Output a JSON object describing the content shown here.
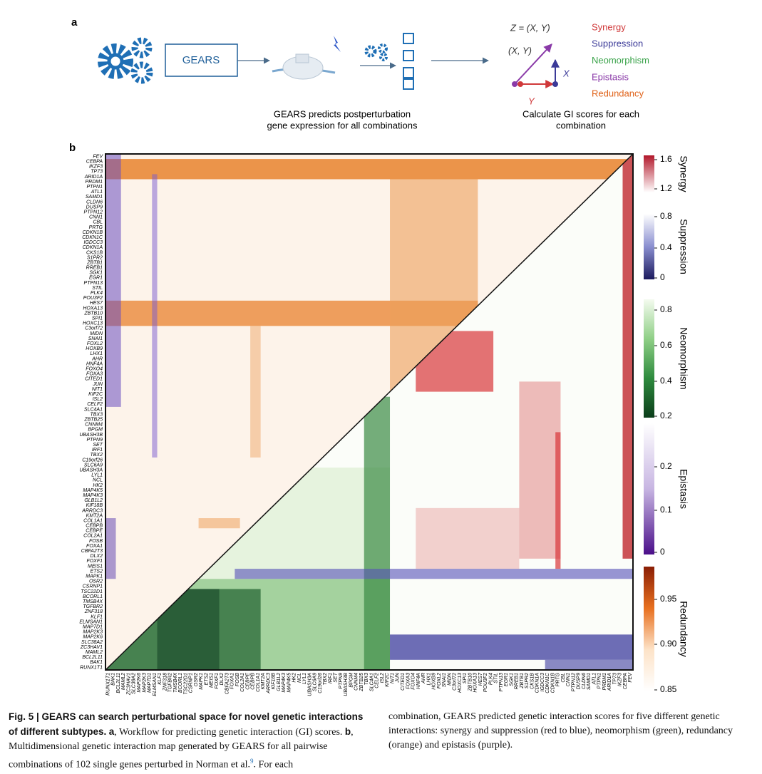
{
  "panel_a": {
    "label": "a",
    "model": "GEARS",
    "formula": "Z = (X, Y)",
    "pair": "(X, Y)",
    "x": "X",
    "y": "Y",
    "caption_left": [
      "GEARS predicts postperturbation",
      "gene expression for all combinations"
    ],
    "caption_right": [
      "Calculate GI scores for each",
      "combination"
    ],
    "interactions": [
      {
        "name": "Synergy",
        "color": "#d0393a"
      },
      {
        "name": "Suppression",
        "color": "#3b3a98"
      },
      {
        "name": "Neomorphism",
        "color": "#3aa34a"
      },
      {
        "name": "Epistasis",
        "color": "#8a3aa8"
      },
      {
        "name": "Redundancy",
        "color": "#e0631a"
      }
    ]
  },
  "panel_b": {
    "label": "b",
    "genes": [
      "FEV",
      "CEBPA",
      "IKZF3",
      "TP73",
      "ARID1A",
      "PRDM1",
      "PTPN1",
      "ATL1",
      "SAMD1",
      "CLDN6",
      "DUSP9",
      "PTPN12",
      "CNN1",
      "CBL",
      "PRTG",
      "CDKN1B",
      "CDKN1C",
      "IGDCC3",
      "CDKN1A",
      "CKS1B",
      "S1PR2",
      "ZBTB1",
      "RREB1",
      "SGK1",
      "EGR1",
      "PTPN13",
      "STIL",
      "PLK4",
      "POU3F2",
      "HES7",
      "HOXA13",
      "ZBTB10",
      "SPI1",
      "HOXC13",
      "C3orf72",
      "MIDN",
      "SNAI1",
      "FOXL2",
      "HOXB9",
      "LHX1",
      "AHR",
      "HNF4A",
      "FOXO4",
      "FOXA3",
      "CITED1",
      "JUN",
      "NIT1",
      "KIF2C",
      "ISL2",
      "CELF2",
      "SLC4A1",
      "TBX3",
      "ZBTB25",
      "CNNM4",
      "BPGM",
      "UBASH3B",
      "PTPN9",
      "SET",
      "IRF1",
      "TBX2",
      "C19orf26",
      "SLC6A9",
      "UBASH3A",
      "LYL1",
      "NCL",
      "HK2",
      "MAP4K5",
      "MAP4K3",
      "GLB1L2",
      "KIF18B",
      "ARRDC3",
      "KMT2A",
      "COL1A1",
      "CEBPB",
      "CEBPE",
      "COL2A1",
      "FOSB",
      "FOXA1",
      "CBFA2T3",
      "DLX2",
      "FOXF1",
      "MEIS1",
      "ETS2",
      "MAPK1",
      "OSR2",
      "CSRNP1",
      "TSC22D1",
      "BCORL1",
      "TMSB4X",
      "TGFBR2",
      "ZNF318",
      "KLF1",
      "ELMSAN1",
      "MAP7D1",
      "MAP2K3",
      "MAP2K6",
      "SLC38A2",
      "ZC3HAV1",
      "MAML2",
      "BCL2L11",
      "BAK1",
      "RUNX1T1"
    ],
    "colorbars": [
      {
        "name": "Synergy",
        "ticks": [
          "1.6",
          "1.2"
        ],
        "colors": [
          "#b2182b",
          "#ffffff"
        ]
      },
      {
        "name": "Suppression",
        "ticks": [
          "0.8",
          "0.4",
          "0"
        ],
        "colors": [
          "#ffffff",
          "#8a8fd0",
          "#1c1a5e"
        ]
      },
      {
        "name": "Neomorphism",
        "ticks": [
          "0.8",
          "0.6",
          "0.4",
          "0.2"
        ],
        "colors": [
          "#f4fbef",
          "#8fcf86",
          "#2e8b3e",
          "#0b3d1a"
        ]
      },
      {
        "name": "Epistasis",
        "ticks": [
          "0.2",
          "0.1",
          "0"
        ],
        "colors": [
          "#ffffff",
          "#c7b5e2",
          "#4b0f8a"
        ]
      },
      {
        "name": "Redundancy",
        "ticks": [
          "0.95",
          "0.90",
          "0.85"
        ],
        "colors": [
          "#8a1e05",
          "#e8701f",
          "#fde3c8",
          "#ffffff"
        ]
      }
    ]
  },
  "caption": {
    "title": "Fig. 5 | GEARS can search perturbational space for novel genetic interactions of different subtypes.",
    "a": "a",
    "a_text": ", Workflow for predicting genetic interaction (GI) scores. ",
    "b": "b",
    "b_text": ", Multidimensional genetic interaction map generated by GEARS for all pairwise combinations of 102 single genes perturbed in Norman et al.",
    "ref": "9",
    "end": ". For each",
    "right": "combination, GEARS predicted genetic interaction scores for five different genetic interactions: synergy and suppression (red to blue), neomorphism (green), redundancy (orange) and epistasis (purple)."
  }
}
